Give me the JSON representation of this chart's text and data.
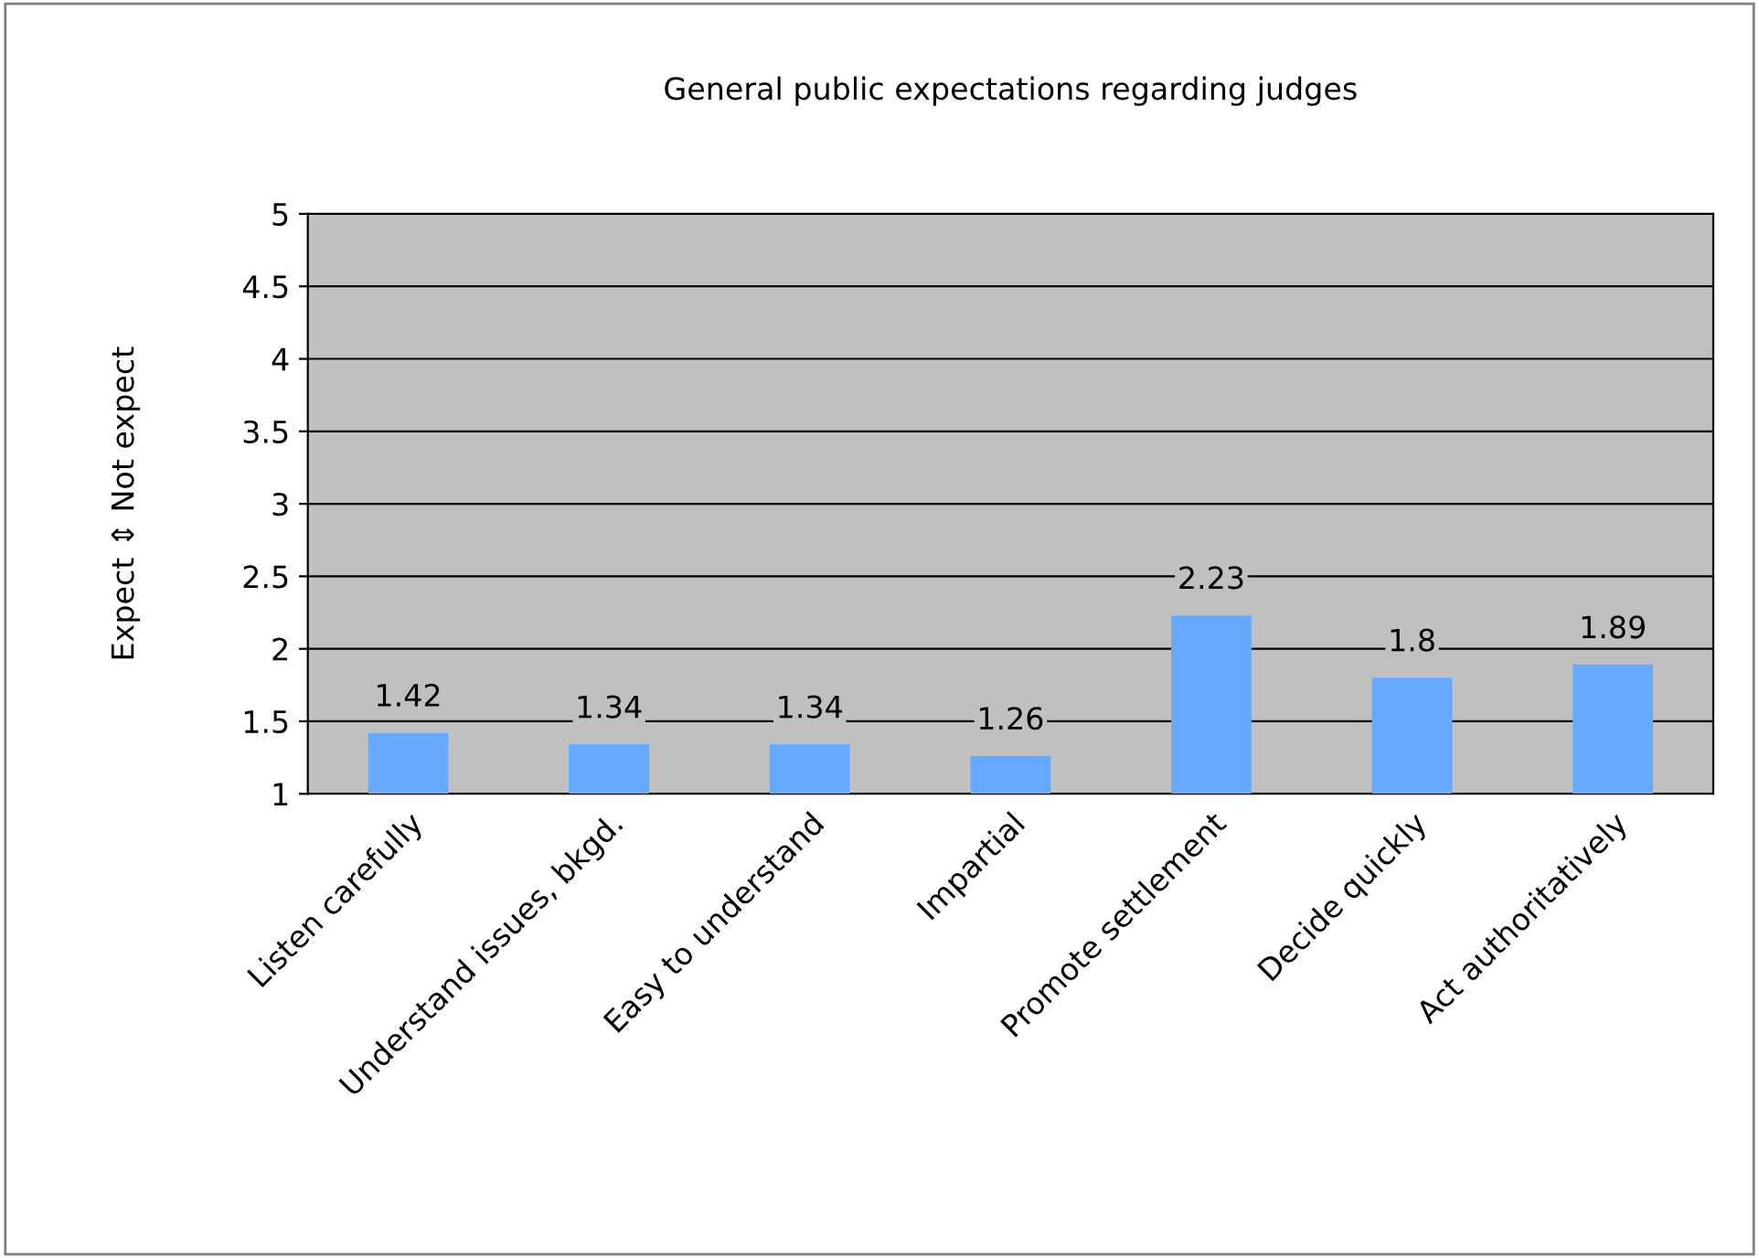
{
  "chart_data": {
    "type": "bar",
    "title": "General public expectations regarding judges",
    "ylabel": "Expect ⇕ Not expect",
    "categories": [
      "Listen carefully",
      "Understand issues, bkgd.",
      "Easy to understand",
      "Impartial",
      "Promote settlement",
      "Decide quickly",
      "Act authoritatively"
    ],
    "values": [
      1.42,
      1.34,
      1.34,
      1.26,
      2.23,
      1.8,
      1.89
    ],
    "color": "#66aaff",
    "ylim": [
      1,
      5
    ],
    "yticks": [
      1,
      1.5,
      2,
      2.5,
      3,
      3.5,
      4,
      4.5,
      5
    ],
    "grid": "y",
    "data_labels": true,
    "legend": false
  }
}
